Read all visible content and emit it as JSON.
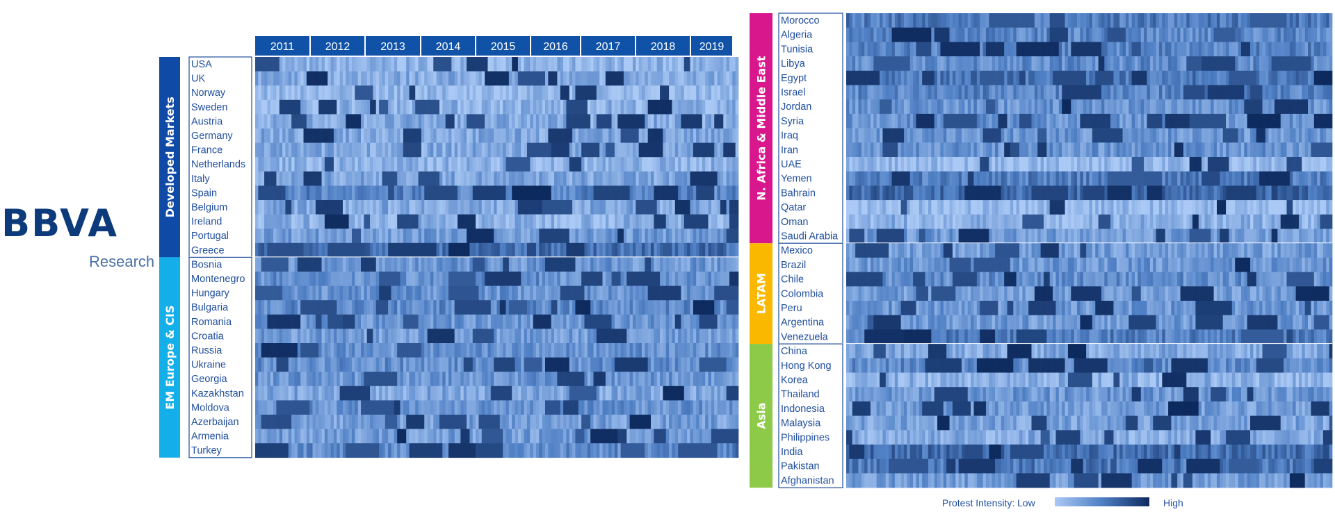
{
  "logo": {
    "brand": "BBVA",
    "sub": "Research"
  },
  "legend": {
    "title": "Protest Intensity:",
    "low": "Low",
    "high": "High",
    "color_low": "#aac9f5",
    "color_high": "#0d2a5e"
  },
  "chart_data": [
    {
      "type": "heatmap",
      "x": [
        "2011",
        "2012",
        "2013",
        "2014",
        "2015",
        "2016",
        "2017",
        "2018",
        "2019"
      ],
      "header_color": "#0f52a8",
      "groups": [
        {
          "label": "Developed Markets",
          "color": "#0f4aa6",
          "rows": [
            "USA",
            "UK",
            "Norway",
            "Sweden",
            "Austria",
            "Germany",
            "France",
            "Netherlands",
            "Italy",
            "Spain",
            "Belgium",
            "Ireland",
            "Portugal",
            "Greece"
          ],
          "intensity": [
            0.18,
            0.28,
            0.12,
            0.22,
            0.28,
            0.3,
            0.3,
            0.2,
            0.32,
            0.62,
            0.3,
            0.22,
            0.42,
            0.78
          ]
        },
        {
          "label": "EM Europe & CIS",
          "color": "#14aee8",
          "rows": [
            "Bosnia",
            "Montenegro",
            "Hungary",
            "Bulgaria",
            "Romania",
            "Croatia",
            "Russia",
            "Ukraine",
            "Georgia",
            "Kazakhstan",
            "Moldova",
            "Azerbaijan",
            "Armenia",
            "Turkey"
          ],
          "intensity": [
            0.45,
            0.5,
            0.48,
            0.55,
            0.45,
            0.4,
            0.48,
            0.52,
            0.46,
            0.32,
            0.5,
            0.38,
            0.4,
            0.55
          ]
        }
      ]
    },
    {
      "type": "heatmap",
      "x": [],
      "groups": [
        {
          "label": "N. Africa & Middle East",
          "color": "#d9178c",
          "rows": [
            "Morocco",
            "Algeria",
            "Tunisia",
            "Libya",
            "Egypt",
            "Israel",
            "Jordan",
            "Syria",
            "Iraq",
            "Iran",
            "UAE",
            "Yemen",
            "Bahrain",
            "Qatar",
            "Oman",
            "Saudi Arabia"
          ],
          "intensity": [
            0.68,
            0.58,
            0.62,
            0.55,
            0.72,
            0.6,
            0.48,
            0.48,
            0.45,
            0.48,
            0.12,
            0.66,
            0.84,
            0.12,
            0.22,
            0.42
          ]
        },
        {
          "label": "LATAM",
          "color": "#fbb800",
          "rows": [
            "Mexico",
            "Brazil",
            "Chile",
            "Colombia",
            "Peru",
            "Argentina",
            "Venezuela"
          ],
          "intensity": [
            0.4,
            0.45,
            0.52,
            0.42,
            0.45,
            0.42,
            0.66
          ]
        },
        {
          "label": "Asia",
          "color": "#8cca48",
          "rows": [
            "China",
            "Hong Kong",
            "Korea",
            "Thailand",
            "Indonesia",
            "Malaysia",
            "Philippines",
            "India",
            "Pakistan",
            "Afghanistan"
          ],
          "intensity": [
            0.3,
            0.55,
            0.22,
            0.45,
            0.4,
            0.35,
            0.28,
            0.8,
            0.7,
            0.42
          ]
        }
      ]
    }
  ]
}
